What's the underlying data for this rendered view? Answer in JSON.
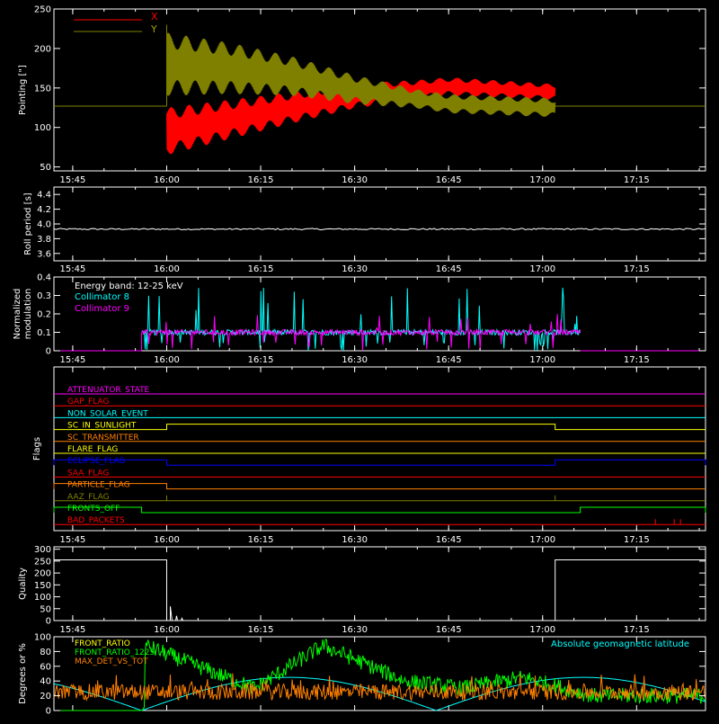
{
  "colors": {
    "x": "#ff0000",
    "y": "#808000",
    "white": "#ffffff",
    "cyan": "#00ffff",
    "magenta": "#ff00ff",
    "green": "#00ff00",
    "orange": "#ff8000",
    "yellow": "#ffff00",
    "blue": "#0000ff",
    "red": "#ff0000",
    "pink": "#ff66aa",
    "olive": "#808000"
  },
  "time_axis": {
    "start": "15:42",
    "end": "17:26",
    "ticks": [
      "15:45",
      "16:00",
      "16:15",
      "16:30",
      "16:45",
      "17:00",
      "17:15"
    ]
  },
  "chart_data": [
    {
      "type": "line",
      "panel": "pointing",
      "ylabel": "Pointing [\"]",
      "ylim": [
        45,
        250
      ],
      "yticks": [
        "50",
        "100",
        "150",
        "200",
        "250"
      ],
      "legend_placement": "top-left",
      "baseline_value": 127,
      "oscillation_start": "16:00",
      "oscillation_end": "17:02",
      "series": [
        {
          "name": "X",
          "center": [
            [
              0,
              95
            ],
            [
              10,
              110
            ],
            [
              20,
              125
            ],
            [
              30,
              140
            ],
            [
              45,
              152
            ],
            [
              62,
              145
            ]
          ],
          "amplitude": [
            [
              0,
              30
            ],
            [
              20,
              20
            ],
            [
              40,
              12
            ],
            [
              62,
              10
            ]
          ]
        },
        {
          "name": "Y",
          "center": [
            [
              0,
              180
            ],
            [
              10,
              175
            ],
            [
              20,
              165
            ],
            [
              30,
              148
            ],
            [
              45,
              130
            ],
            [
              62,
              125
            ]
          ],
          "amplitude": [
            [
              0,
              40
            ],
            [
              20,
              25
            ],
            [
              40,
              12
            ],
            [
              62,
              12
            ]
          ]
        }
      ]
    },
    {
      "type": "line",
      "panel": "roll",
      "ylabel": "Roll period [s]",
      "ylim": [
        3.5,
        4.5
      ],
      "yticks": [
        "3.6",
        "3.8",
        "4.0",
        "4.2",
        "4.4"
      ],
      "series": [
        {
          "name": "Roll period",
          "value": 3.93
        }
      ]
    },
    {
      "type": "line",
      "panel": "modulation",
      "ylabel": [
        "Normalized",
        "modulation"
      ],
      "ylim": [
        0,
        0.4
      ],
      "yticks": [
        "0",
        "0.1",
        "0.2",
        "0.3",
        "0.4"
      ],
      "legend_placement": "top-left",
      "annotation": "Energy band: 12-25 keV",
      "data_start": "15:56",
      "data_end": "17:06",
      "series": [
        {
          "name": "Collimator 8",
          "color": "#00ffff",
          "mean": 0.1,
          "peak": 0.35
        },
        {
          "name": "Collimator 9",
          "color": "#ff00ff",
          "mean": 0.1,
          "peak": 0.2
        }
      ]
    },
    {
      "type": "line",
      "panel": "flags",
      "ylabel": "Flags",
      "series": [
        {
          "name": "ATTENUATOR_STATE",
          "color": "#ff00ff",
          "segments": []
        },
        {
          "name": "GAP_FLAG",
          "color": "#ff0000",
          "segments": []
        },
        {
          "name": "NON_SOLAR_EVENT",
          "color": "#00ffff",
          "segments": []
        },
        {
          "name": "SC_IN_SUNLIGHT",
          "color": "#ffff00",
          "segments": [
            [
              "16:00",
              "17:02"
            ]
          ]
        },
        {
          "name": "SC_TRANSMITTER",
          "color": "#ff8000",
          "segments": []
        },
        {
          "name": "FLARE_FLAG",
          "color": "#ffff00",
          "segments": []
        },
        {
          "name": "ECLIPSE_FLAG",
          "color": "#0000ff",
          "segments": [
            [
              "15:42",
              "16:00"
            ],
            [
              "17:02",
              "17:26"
            ]
          ]
        },
        {
          "name": "SAA_FLAG",
          "color": "#ff0000",
          "segments": []
        },
        {
          "name": "PARTICLE_FLAG",
          "color": "#ff8000",
          "segments": [
            [
              "15:42",
              "16:00"
            ]
          ]
        },
        {
          "name": "AAZ_FLAG",
          "color": "#808000",
          "spikes": [
            "16:00",
            "17:02"
          ]
        },
        {
          "name": "FRONTS_OFF",
          "color": "#00ff00",
          "segments": [
            [
              "15:42",
              "15:56"
            ],
            [
              "17:06",
              "17:26"
            ]
          ]
        },
        {
          "name": "BAD_PACKETS",
          "color": "#ff0000",
          "spikes": [
            "17:18",
            "17:21",
            "17:22"
          ]
        }
      ]
    },
    {
      "type": "line",
      "panel": "quality",
      "ylabel": "Quality",
      "ylim": [
        0,
        310
      ],
      "yticks": [
        "0",
        "50",
        "100",
        "150",
        "200",
        "250",
        "300"
      ],
      "series": [
        {
          "name": "Quality",
          "high": 255,
          "low": 0,
          "high_before": "16:00",
          "high_after": "17:02"
        }
      ]
    },
    {
      "type": "line",
      "panel": "ratios",
      "ylabel": "Degrees or %",
      "ylim": [
        0,
        100
      ],
      "yticks": [
        "0",
        "20",
        "40",
        "60",
        "80",
        "100"
      ],
      "legend_placement": "top-left",
      "series": [
        {
          "name": "FRONT_RATIO",
          "color": "#ffff00"
        },
        {
          "name": "FRONT_RATIO_1225",
          "label": "FRONT_RATIO_1225",
          "color": "#00ff00",
          "levels": [
            [
              0,
              90
            ],
            [
              18,
              30
            ],
            [
              29,
              88
            ],
            [
              42,
              40
            ],
            [
              51,
              30
            ],
            [
              61,
              45
            ],
            [
              72,
              20
            ]
          ]
        },
        {
          "name": "MAX_DET_VS_TOT",
          "color": "#ff8000",
          "level": 25
        },
        {
          "name": "Absolute geomagnetic latitude",
          "color": "#00ffff"
        }
      ]
    }
  ]
}
